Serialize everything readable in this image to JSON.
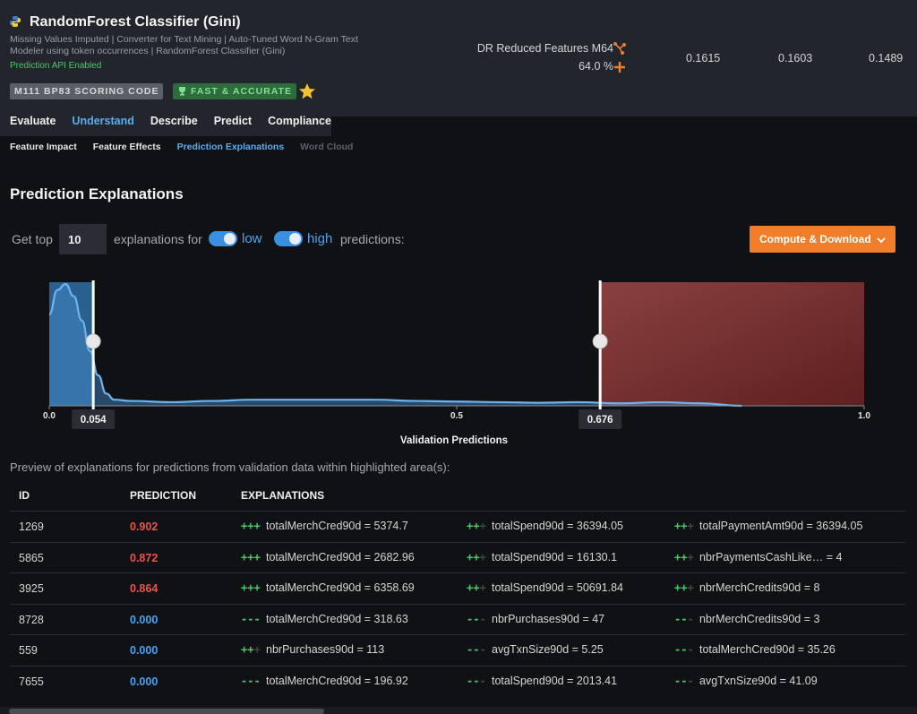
{
  "model": {
    "title": "RandomForest Classifier (Gini)",
    "description": "Missing Values Imputed | Converter for Text Mining | Auto-Tuned Word N-Gram Text Modeler using token occurrences | RandomForest Classifier (Gini)",
    "api_status": "Prediction API Enabled",
    "badge_id": "M111  BP83  SCORING CODE",
    "badge_fast": "FAST & ACCURATE",
    "feature_list": "DR Reduced Features M64",
    "sample_pct": "64.0 %",
    "scores": [
      "0.1615",
      "0.1603",
      "0.1489"
    ]
  },
  "main_tabs": [
    {
      "label": "Evaluate",
      "active": false
    },
    {
      "label": "Understand",
      "active": true
    },
    {
      "label": "Describe",
      "active": false
    },
    {
      "label": "Predict",
      "active": false
    },
    {
      "label": "Compliance",
      "active": false
    }
  ],
  "sub_tabs": [
    {
      "label": "Feature Impact",
      "state": "normal"
    },
    {
      "label": "Feature Effects",
      "state": "normal"
    },
    {
      "label": "Prediction Explanations",
      "state": "active"
    },
    {
      "label": "Word Cloud",
      "state": "disabled"
    }
  ],
  "page_title": "Prediction Explanations",
  "controls": {
    "get_top": "Get top",
    "top_n": "10",
    "explanations_for": "explanations for",
    "low": "low",
    "high": "high",
    "predictions": "predictions:",
    "compute_button": "Compute & Download"
  },
  "chart_data": {
    "type": "area",
    "xlabel": "Validation Predictions",
    "xlim": [
      0,
      1
    ],
    "x_ticks": [
      "0.0",
      "0.5",
      "1.0"
    ],
    "low_threshold": 0.054,
    "high_threshold": 0.676,
    "low_threshold_label": "0.054",
    "high_threshold_label": "0.676",
    "density": {
      "x": [
        0,
        0.01,
        0.02,
        0.03,
        0.04,
        0.05,
        0.06,
        0.07,
        0.08,
        0.1,
        0.15,
        0.2,
        0.25,
        0.3,
        0.35,
        0.4,
        0.45,
        0.5,
        0.55,
        0.6,
        0.65,
        0.7,
        0.75,
        0.8,
        0.85
      ],
      "y": [
        0.75,
        0.95,
        1.0,
        0.9,
        0.7,
        0.45,
        0.25,
        0.1,
        0.05,
        0.04,
        0.03,
        0.04,
        0.05,
        0.05,
        0.05,
        0.05,
        0.04,
        0.035,
        0.03,
        0.025,
        0.03,
        0.02,
        0.03,
        0.02,
        0.0
      ]
    }
  },
  "preview_note": "Preview of explanations for predictions from validation data within highlighted area(s):",
  "table": {
    "headers": [
      "ID",
      "PREDICTION",
      "EXPLANATIONS"
    ],
    "rows": [
      {
        "id": "1269",
        "prediction": "0.902",
        "level": "high",
        "explanations": [
          {
            "strength": "+++",
            "text": "totalMerchCred90d = 5374.7"
          },
          {
            "strength": "++",
            "text": "totalSpend90d = 36394.05"
          },
          {
            "strength": "++",
            "text": "totalPaymentAmt90d = 36394.05"
          }
        ]
      },
      {
        "id": "5865",
        "prediction": "0.872",
        "level": "high",
        "explanations": [
          {
            "strength": "+++",
            "text": "totalMerchCred90d = 2682.96"
          },
          {
            "strength": "++",
            "text": "totalSpend90d = 16130.1"
          },
          {
            "strength": "++",
            "text": "nbrPaymentsCashLike… = 4"
          }
        ]
      },
      {
        "id": "3925",
        "prediction": "0.864",
        "level": "high",
        "explanations": [
          {
            "strength": "+++",
            "text": "totalMerchCred90d = 6358.69"
          },
          {
            "strength": "++",
            "text": "totalSpend90d = 50691.84"
          },
          {
            "strength": "++",
            "text": "nbrMerchCredits90d = 8"
          }
        ]
      },
      {
        "id": "8728",
        "prediction": "0.000",
        "level": "low",
        "explanations": [
          {
            "strength": "---",
            "text": "totalMerchCred90d = 318.63"
          },
          {
            "strength": "--",
            "text": "nbrPurchases90d = 47"
          },
          {
            "strength": "--",
            "text": "nbrMerchCredits90d = 3"
          }
        ]
      },
      {
        "id": "559",
        "prediction": "0.000",
        "level": "low",
        "explanations": [
          {
            "strength": "++",
            "text": "nbrPurchases90d = 113"
          },
          {
            "strength": "--",
            "text": "avgTxnSize90d = 5.25"
          },
          {
            "strength": "--",
            "text": "totalMerchCred90d = 35.26"
          }
        ]
      },
      {
        "id": "7655",
        "prediction": "0.000",
        "level": "low",
        "explanations": [
          {
            "strength": "---",
            "text": "totalMerchCred90d = 196.92"
          },
          {
            "strength": "--",
            "text": "totalSpend90d = 2013.41"
          },
          {
            "strength": "--",
            "text": "avgTxnSize90d = 41.09"
          }
        ]
      }
    ]
  },
  "colors": {
    "accent": "#5aaef0",
    "high": "#e8554a",
    "low": "#4aa3f0",
    "positive": "#4cc86a",
    "button": "#f07d2a"
  }
}
